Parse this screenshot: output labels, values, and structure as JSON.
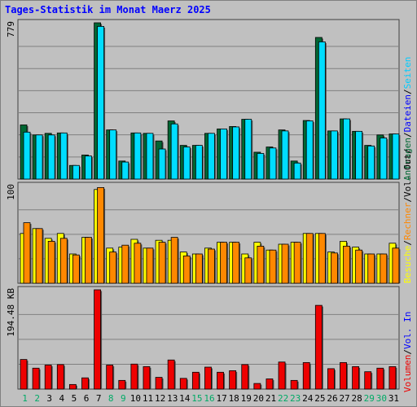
{
  "title": "Tages-Statistik im Monat Maerz 2025",
  "colors": {
    "background": "#c0c0c0",
    "title": "#0000ff",
    "anfragen": "#006633",
    "dateien": "#00ddff",
    "seiten": "#00ddff",
    "besuche": "#ffff00",
    "rechner": "#ff8800",
    "volumen": "#ee0000",
    "weekday_label": "#000000",
    "weekend_label": "#00aa66"
  },
  "chart_data": [
    {
      "type": "bar",
      "panel": "top",
      "max_label": "779",
      "ylim": [
        0,
        779
      ],
      "categories": [
        "1",
        "2",
        "3",
        "4",
        "5",
        "6",
        "7",
        "8",
        "9",
        "10",
        "11",
        "12",
        "13",
        "14",
        "15",
        "16",
        "17",
        "18",
        "19",
        "20",
        "21",
        "22",
        "23",
        "24",
        "25",
        "26",
        "27",
        "28",
        "29",
        "30",
        "31"
      ],
      "weekend_days": [
        "1",
        "2",
        "8",
        "9",
        "15",
        "16",
        "22",
        "23",
        "29",
        "30"
      ],
      "series": [
        {
          "name": "Anfragen",
          "values": [
            270,
            220,
            228,
            230,
            68,
            120,
            779,
            245,
            90,
            230,
            228,
            190,
            290,
            168,
            168,
            228,
            250,
            262,
            298,
            134,
            160,
            245,
            90,
            292,
            706,
            240,
            300,
            238,
            168,
            220,
            225
          ]
        },
        {
          "name": "Dateien",
          "values": [
            234,
            220,
            220,
            230,
            68,
            115,
            761,
            245,
            85,
            230,
            228,
            150,
            275,
            160,
            168,
            228,
            250,
            260,
            298,
            128,
            155,
            240,
            80,
            290,
            684,
            240,
            300,
            238,
            165,
            205,
            225
          ]
        }
      ],
      "right_labels": [
        "Anfragen",
        "/",
        "Dateien",
        "/",
        "Seiten"
      ]
    },
    {
      "type": "bar",
      "panel": "middle",
      "max_label": "100",
      "ylim": [
        0,
        100
      ],
      "categories": [
        "1",
        "2",
        "3",
        "4",
        "5",
        "6",
        "7",
        "8",
        "9",
        "10",
        "11",
        "12",
        "13",
        "14",
        "15",
        "16",
        "17",
        "18",
        "19",
        "20",
        "21",
        "22",
        "23",
        "24",
        "25",
        "26",
        "27",
        "28",
        "29",
        "30",
        "31"
      ],
      "series": [
        {
          "name": "Besuche",
          "values": [
            51,
            56,
            46,
            51,
            30,
            47,
            96,
            36,
            37,
            45,
            36,
            44,
            44,
            32,
            30,
            36,
            42,
            42,
            30,
            42,
            34,
            40,
            42,
            51,
            51,
            32,
            43,
            37,
            30,
            30,
            41
          ]
        },
        {
          "name": "Rechner",
          "values": [
            62,
            56,
            43,
            46,
            29,
            47,
            98,
            32,
            39,
            41,
            36,
            42,
            47,
            28,
            30,
            35,
            42,
            42,
            26,
            38,
            34,
            40,
            42,
            51,
            51,
            31,
            38,
            34,
            30,
            30,
            36
          ]
        }
      ],
      "right_labels": [
        "Besuche",
        "/",
        "Rechner",
        "/",
        "Vol. Out",
        "/"
      ]
    },
    {
      "type": "bar",
      "panel": "bottom",
      "max_label": "194.48 KB",
      "ylim": [
        0,
        194.48
      ],
      "categories": [
        "1",
        "2",
        "3",
        "4",
        "5",
        "6",
        "7",
        "8",
        "9",
        "10",
        "11",
        "12",
        "13",
        "14",
        "15",
        "16",
        "17",
        "18",
        "19",
        "20",
        "21",
        "22",
        "23",
        "24",
        "25",
        "26",
        "27",
        "28",
        "29",
        "30",
        "31"
      ],
      "series": [
        {
          "name": "Volumen",
          "values": [
            58,
            41,
            47,
            48,
            9,
            22,
            194.48,
            47,
            17,
            49,
            44,
            23,
            57,
            21,
            33,
            43,
            33,
            36,
            48,
            11,
            20,
            53,
            17,
            52,
            164,
            40,
            52,
            44,
            34,
            41,
            44
          ]
        }
      ],
      "right_labels": [
        "Volumen",
        "/",
        "Vol. In"
      ]
    }
  ]
}
